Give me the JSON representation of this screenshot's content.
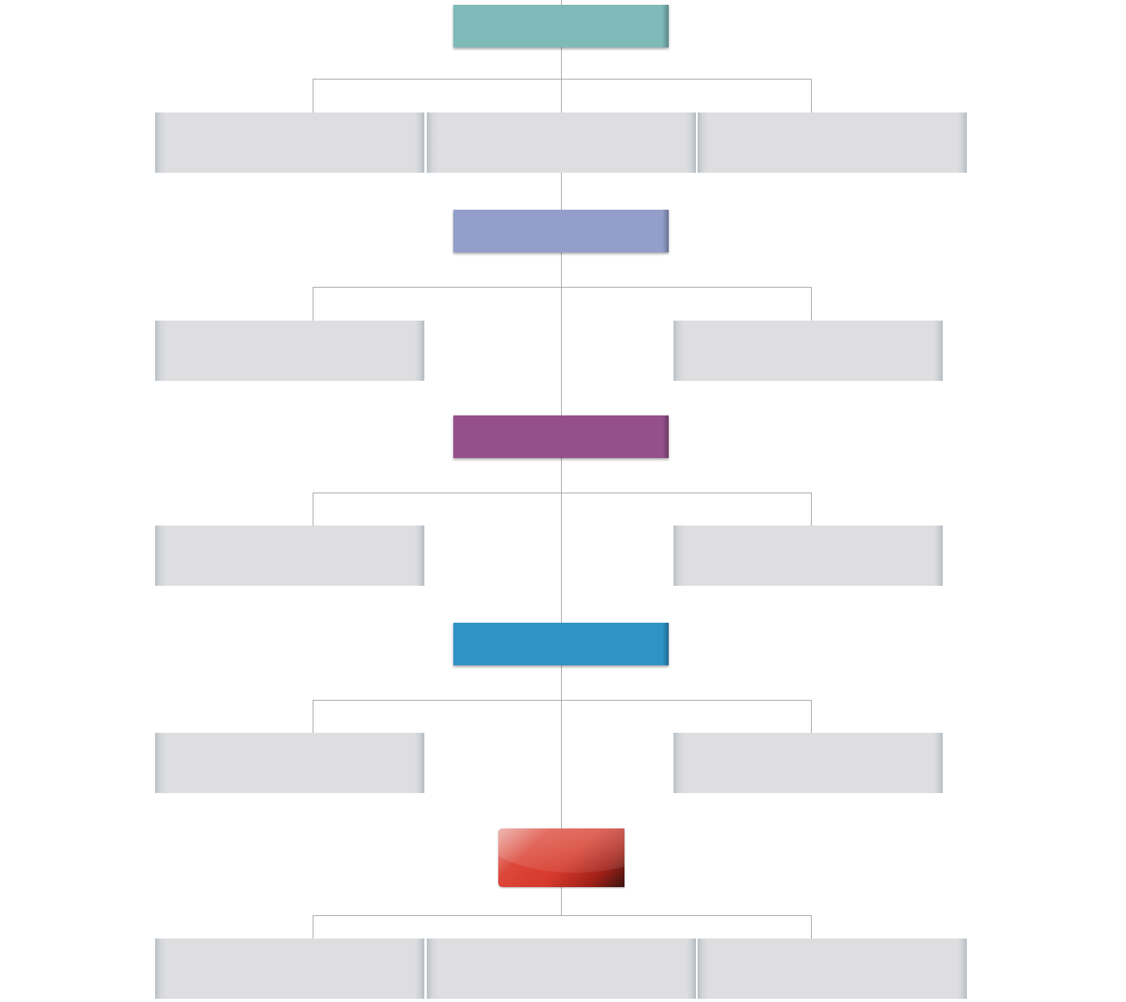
{
  "diagram": {
    "levels": [
      {
        "header": {
          "label": "",
          "color": "#7dbab8"
        },
        "children": [
          "",
          "",
          ""
        ]
      },
      {
        "header": {
          "label": "",
          "color": "#939fca"
        },
        "children": [
          "",
          ""
        ]
      },
      {
        "header": {
          "label": "",
          "color": "#95508c"
        },
        "children": [
          "",
          ""
        ]
      },
      {
        "header": {
          "label": "",
          "color": "#3093c7"
        },
        "children": [
          "",
          ""
        ]
      },
      {
        "header": {
          "label": "",
          "color": "#d63a2c",
          "style": "glossy-button"
        },
        "children": [
          "",
          "",
          ""
        ]
      }
    ],
    "connector_color": "#a7a7a7",
    "child_box_color": "#dedee0"
  }
}
